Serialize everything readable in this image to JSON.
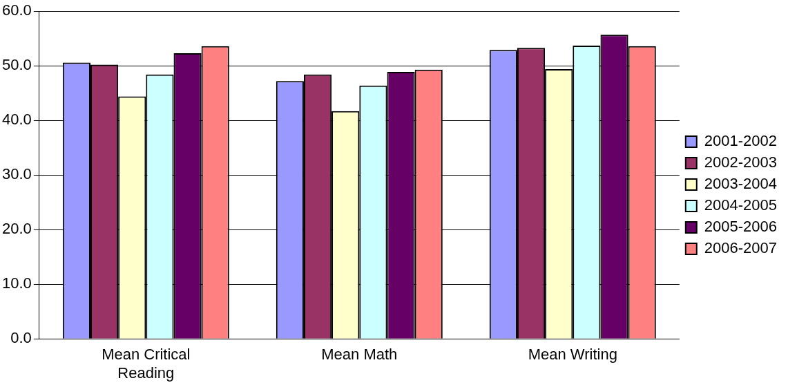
{
  "chart_data": {
    "type": "bar",
    "categories": [
      "Mean Critical Reading",
      "Mean Math",
      "Mean Writing"
    ],
    "series": [
      {
        "name": "2001-2002",
        "color": "#9999ff",
        "values": [
          50.6,
          47.2,
          52.9
        ]
      },
      {
        "name": "2002-2003",
        "color": "#993366",
        "values": [
          50.2,
          48.4,
          53.3
        ]
      },
      {
        "name": "2003-2004",
        "color": "#ffffcc",
        "values": [
          44.4,
          41.7,
          49.4
        ]
      },
      {
        "name": "2004-2005",
        "color": "#ccffff",
        "values": [
          48.4,
          46.4,
          53.7
        ]
      },
      {
        "name": "2005-2006",
        "color": "#660066",
        "values": [
          52.3,
          48.9,
          55.7
        ]
      },
      {
        "name": "2006-2007",
        "color": "#ff8080",
        "values": [
          53.6,
          49.3,
          53.6
        ]
      }
    ],
    "ylim": [
      0,
      60
    ],
    "yticks": [
      {
        "value": 0,
        "label": "0.0"
      },
      {
        "value": 10,
        "label": "10.0"
      },
      {
        "value": 20,
        "label": "20.0"
      },
      {
        "value": 30,
        "label": "30.0"
      },
      {
        "value": 40,
        "label": "40.0"
      },
      {
        "value": 50,
        "label": "50.0"
      },
      {
        "value": 60,
        "label": "60.0"
      }
    ],
    "grid": "y",
    "legend": "right"
  }
}
